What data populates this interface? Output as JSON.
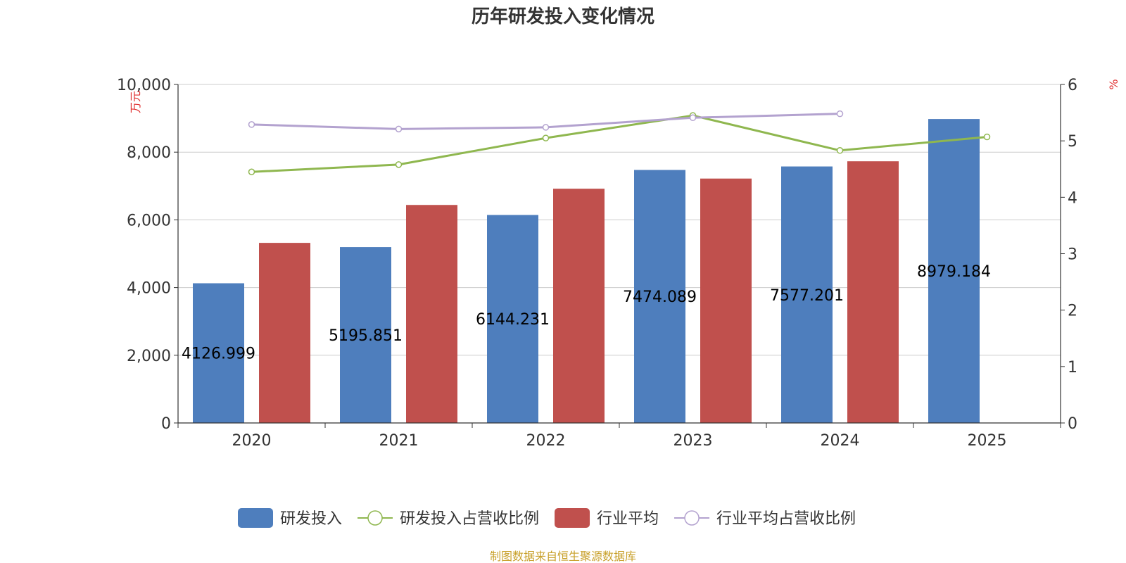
{
  "chart_data": {
    "type": "bar",
    "title": "历年研发投入变化情况",
    "categories": [
      "2020",
      "2021",
      "2022",
      "2023",
      "2024",
      "2025"
    ],
    "y_left": {
      "unit": "万元",
      "ylim": [
        0,
        10000
      ],
      "ticks": [
        0,
        2000,
        4000,
        6000,
        8000,
        10000
      ],
      "tick_labels": [
        "0",
        "2,000",
        "4,000",
        "6,000",
        "8,000",
        "10,000"
      ]
    },
    "y_right": {
      "unit": "%",
      "ylim": [
        0,
        6
      ],
      "ticks": [
        0,
        1,
        2,
        3,
        4,
        5,
        6
      ],
      "tick_labels": [
        "0",
        "1",
        "2",
        "3",
        "4",
        "5",
        "6"
      ]
    },
    "series": [
      {
        "name": "研发投入",
        "kind": "bar",
        "axis": "left",
        "color": "#4e7ebd",
        "values": [
          4126.999,
          5195.851,
          6144.231,
          7474.089,
          7577.201,
          8979.184
        ],
        "labels": [
          "4126.999",
          "5195.851",
          "6144.231",
          "7474.089",
          "7577.201",
          "8979.184"
        ]
      },
      {
        "name": "研发投入占营收比例",
        "kind": "line",
        "axis": "right",
        "color": "#8fb74f",
        "values": [
          4.45,
          4.58,
          5.05,
          5.45,
          4.83,
          5.07
        ]
      },
      {
        "name": "行业平均",
        "kind": "bar",
        "axis": "left",
        "color": "#c0504d",
        "values": [
          5320,
          6440,
          6920,
          7220,
          7730,
          null
        ]
      },
      {
        "name": "行业平均占营收比例",
        "kind": "line",
        "axis": "right",
        "color": "#b3a2cf",
        "values": [
          5.29,
          5.21,
          5.24,
          5.41,
          5.48,
          null
        ]
      }
    ],
    "legend_position": "bottom",
    "grid": true
  },
  "source_note": "制图数据来自恒生聚源数据库"
}
